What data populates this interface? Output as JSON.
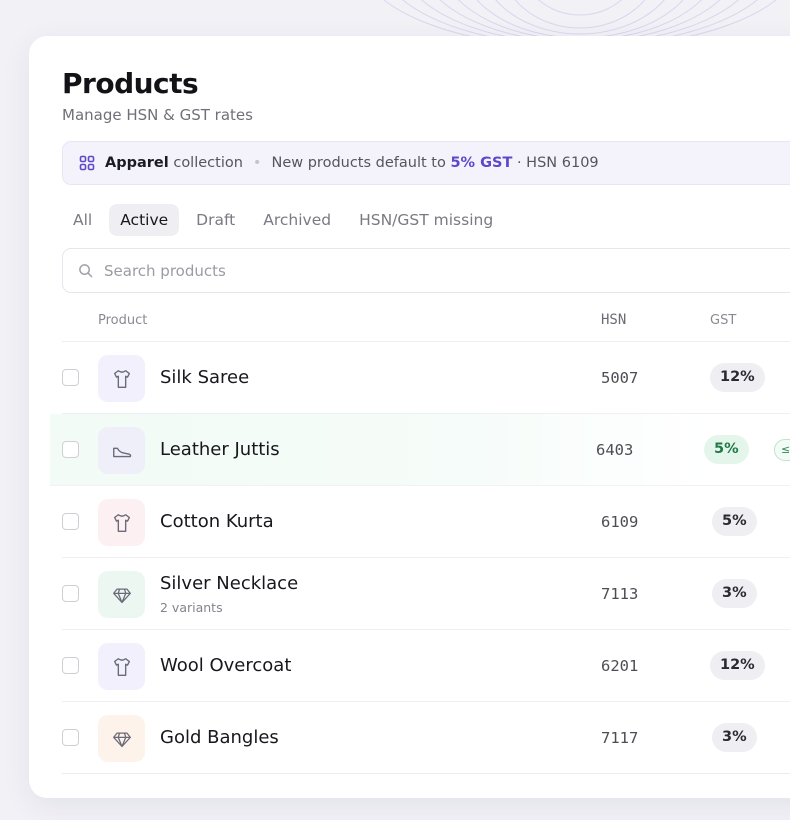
{
  "page": {
    "title": "Products",
    "subtitle": "Manage HSN & GST rates"
  },
  "banner": {
    "icon": "grid-icon",
    "collection_name": "Apparel",
    "collection_suffix": "collection",
    "separator": "•",
    "default_prefix": "New products default to",
    "default_rate": "5% GST",
    "default_hsn": "· HSN 6109",
    "accent_color": "#5b49c9"
  },
  "tabs": [
    {
      "label": "All",
      "active": false
    },
    {
      "label": "Active",
      "active": true
    },
    {
      "label": "Draft",
      "active": false
    },
    {
      "label": "Archived",
      "active": false
    },
    {
      "label": "HSN/GST missing",
      "active": false
    }
  ],
  "search": {
    "icon": "search-icon",
    "placeholder": "Search products"
  },
  "table": {
    "columns": [
      "Product",
      "HSN",
      "GST"
    ],
    "rows": [
      {
        "name": "Silk Saree",
        "variants": "",
        "hsn": "5007",
        "gst": "12%",
        "icon": "shirt-icon",
        "thumb_color": "#f1f0fc"
      },
      {
        "name": "Leather Juttis",
        "variants": "",
        "hsn": "6403",
        "gst": "5%",
        "icon": "shoe-icon",
        "thumb_color": "#eeeff9",
        "highlighted": true,
        "chip": "≤₹"
      },
      {
        "name": "Cotton Kurta",
        "variants": "",
        "hsn": "6109",
        "gst": "5%",
        "icon": "shirt-icon",
        "thumb_color": "#fcf0f3"
      },
      {
        "name": "Silver Necklace",
        "variants": "2 variants",
        "hsn": "7113",
        "gst": "3%",
        "icon": "gem-icon",
        "thumb_color": "#edf7f1"
      },
      {
        "name": "Wool Overcoat",
        "variants": "",
        "hsn": "6201",
        "gst": "12%",
        "icon": "shirt-icon",
        "thumb_color": "#f1f0fc"
      },
      {
        "name": "Gold Bangles",
        "variants": "",
        "hsn": "7117",
        "gst": "3%",
        "icon": "gem-icon",
        "thumb_color": "#fdf3ea"
      }
    ]
  }
}
